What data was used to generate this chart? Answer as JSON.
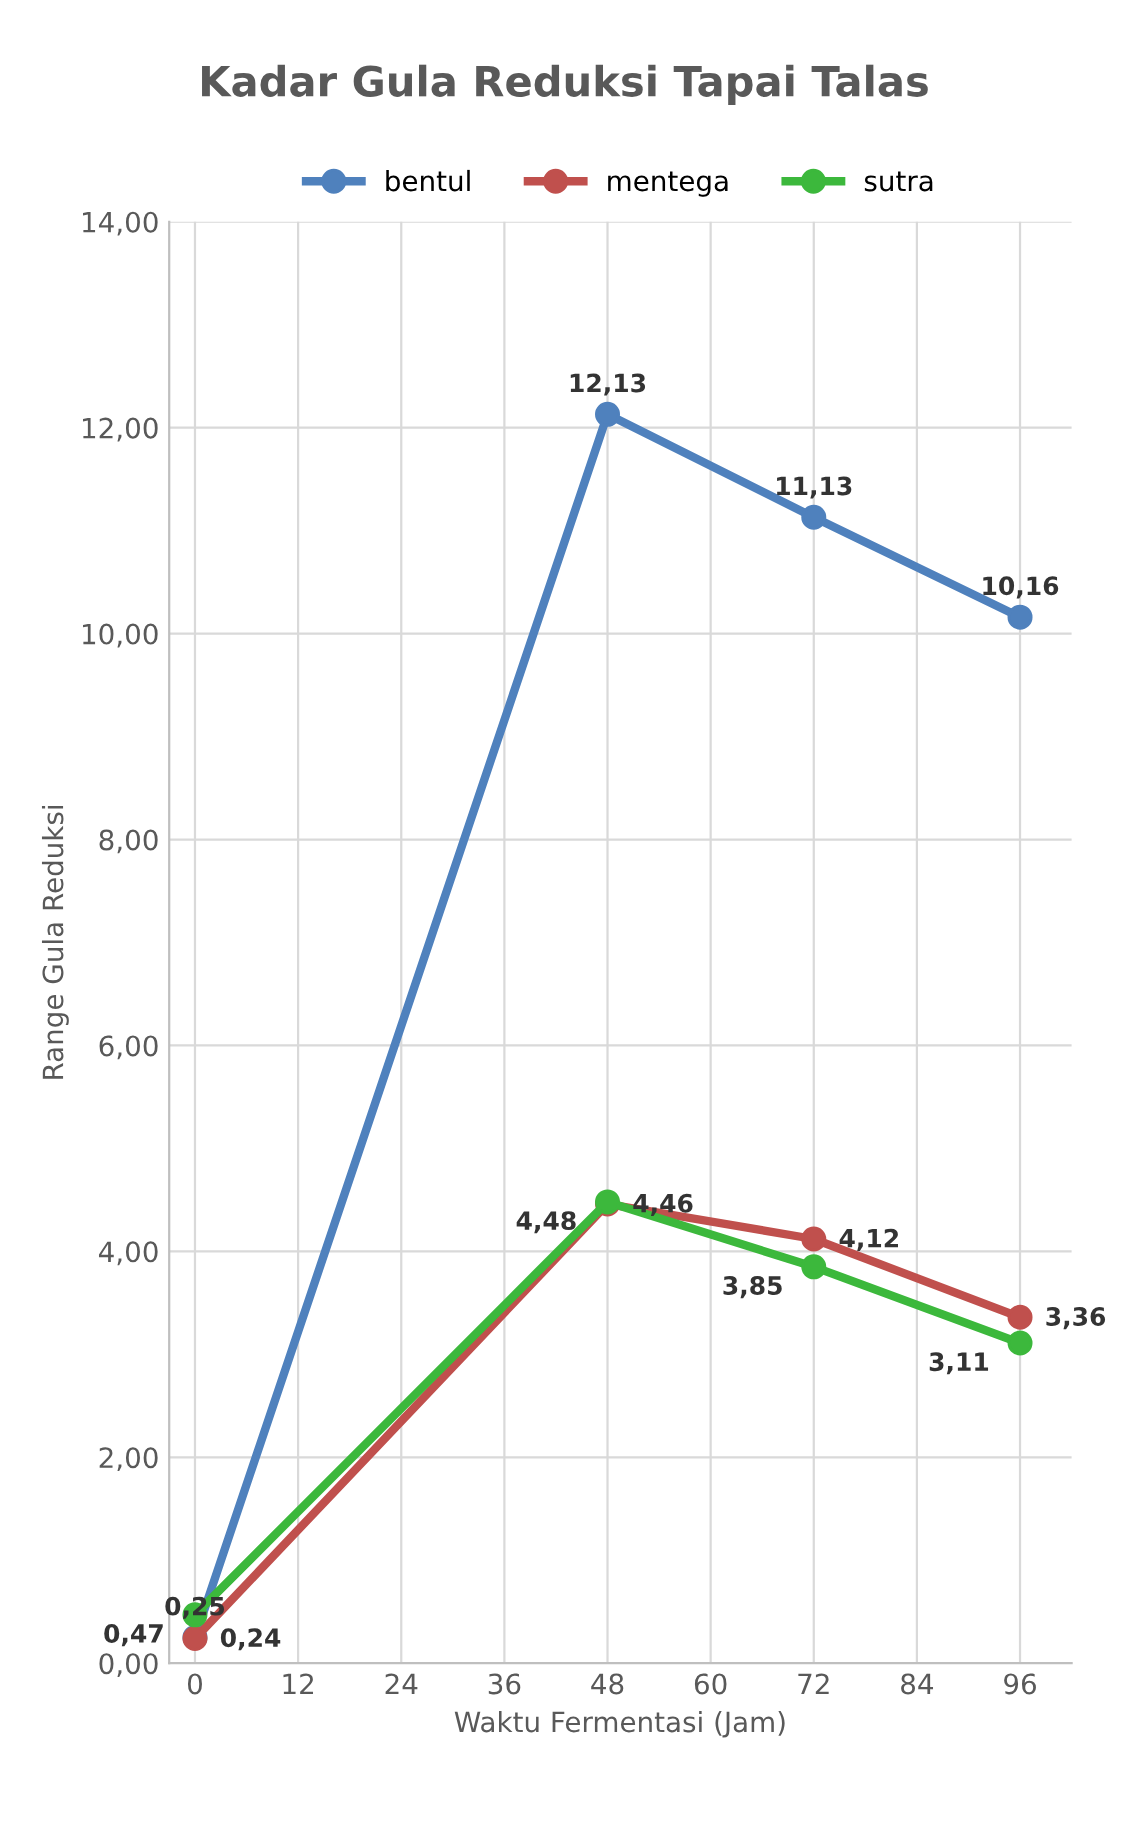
{
  "chart_data": {
    "type": "line",
    "title": "Kadar Gula Reduksi Tapai Talas",
    "xlabel": "Waktu Fermentasi (Jam)",
    "ylabel": "Range Gula Reduksi",
    "x": [
      0,
      48,
      72,
      96
    ],
    "series": [
      {
        "name": "bentul",
        "color": "#4f81bd",
        "values": [
          0.25,
          12.13,
          11.13,
          10.16
        ],
        "value_labels": [
          "0,25",
          "12,13",
          "11,13",
          "10,16"
        ]
      },
      {
        "name": "mentega",
        "color": "#c0504d",
        "values": [
          0.24,
          4.46,
          4.12,
          3.36
        ],
        "value_labels": [
          "0,24",
          "4,46",
          "4,12",
          "3,36"
        ]
      },
      {
        "name": "sutra",
        "color": "#3cb83c",
        "values": [
          0.47,
          4.48,
          3.85,
          3.11
        ],
        "value_labels": [
          "0,47",
          "4,48",
          "3,85",
          "3,11"
        ]
      }
    ],
    "xlim": [
      -3,
      102
    ],
    "xticks": [
      0,
      12,
      24,
      36,
      48,
      60,
      72,
      84,
      96
    ],
    "ylim": [
      0,
      14
    ],
    "yticks": [
      {
        "value": 0,
        "label": "0,00"
      },
      {
        "value": 2,
        "label": "2,00"
      },
      {
        "value": 4,
        "label": "4,00"
      },
      {
        "value": 6,
        "label": "6,00"
      },
      {
        "value": 8,
        "label": "8,00"
      },
      {
        "value": 10,
        "label": "10,00"
      },
      {
        "value": 12,
        "label": "12,00"
      },
      {
        "value": 14,
        "label": "14,00"
      }
    ],
    "grid": true,
    "legend": "top",
    "marker": "circle",
    "line_style": "solid"
  }
}
